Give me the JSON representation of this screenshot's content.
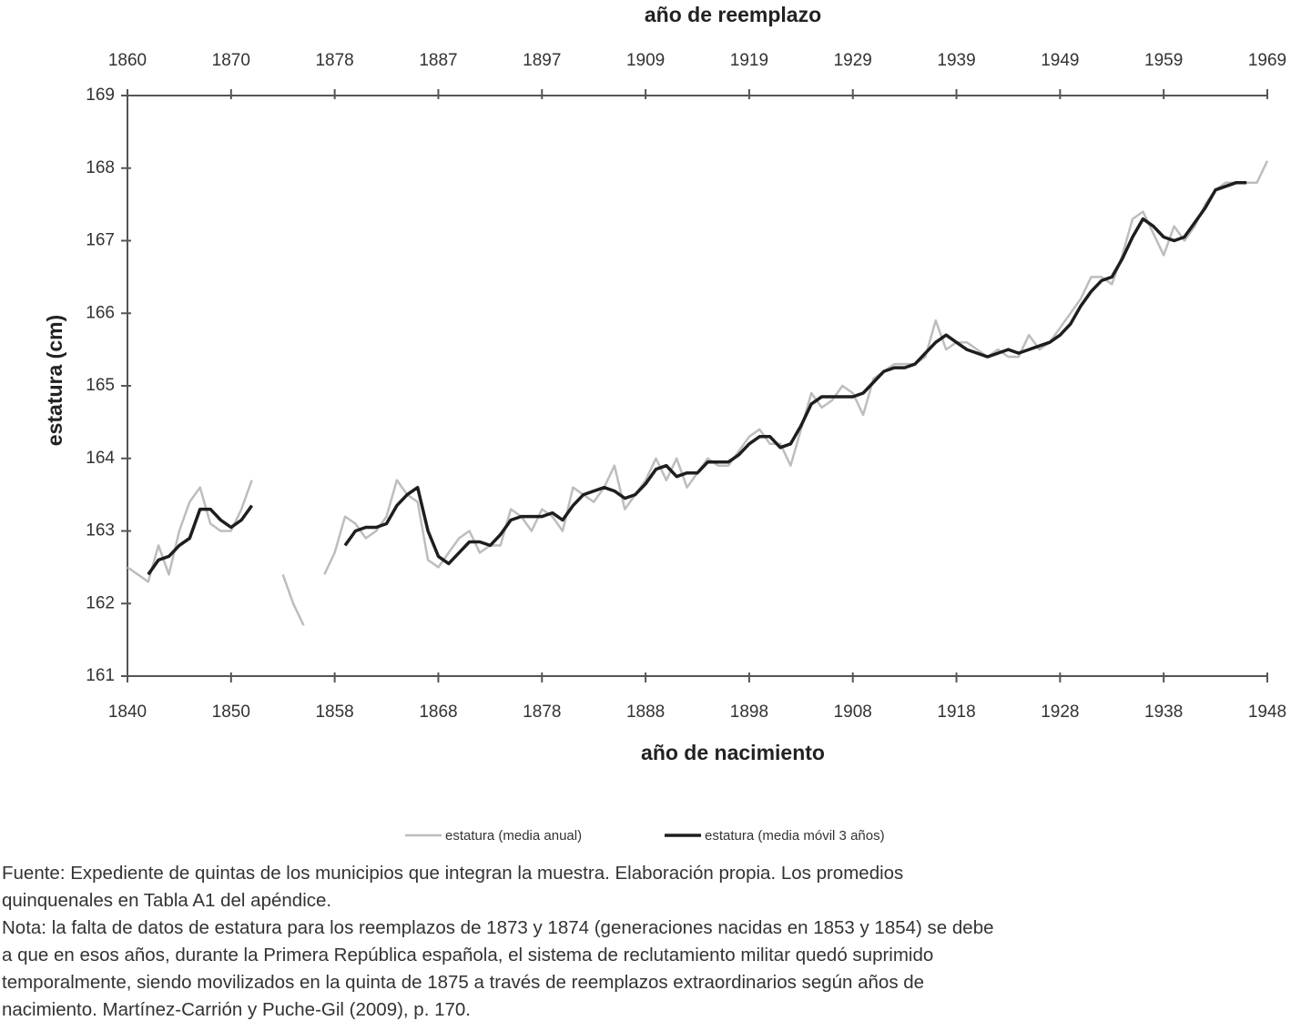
{
  "chart_data": {
    "type": "line",
    "title": "año de reemplazo",
    "x_label": "año de nacimiento",
    "y_label": "estatura (cm)",
    "categories": [
      "1840",
      null,
      null,
      null,
      null,
      null,
      null,
      null,
      null,
      null,
      "1850",
      null,
      null,
      null,
      null,
      null,
      null,
      null,
      null,
      null,
      "1858",
      null,
      null,
      null,
      null,
      null,
      null,
      null,
      null,
      null,
      "1868",
      null,
      null,
      null,
      null,
      null,
      null,
      null,
      null,
      null,
      "1878",
      null,
      null,
      null,
      null,
      null,
      null,
      null,
      null,
      null,
      "1888",
      null,
      null,
      null,
      null,
      null,
      null,
      null,
      null,
      null,
      "1898",
      null,
      null,
      null,
      null,
      null,
      null,
      null,
      null,
      null,
      "1908",
      null,
      null,
      null,
      null,
      null,
      null,
      null,
      null,
      null,
      "1918",
      null,
      null,
      null,
      null,
      null,
      null,
      null,
      null,
      null,
      "1928",
      null,
      null,
      null,
      null,
      null,
      null,
      null,
      null,
      null,
      "1938",
      null,
      null,
      null,
      null,
      null,
      null,
      null,
      null,
      null,
      "1948"
    ],
    "top_categories": [
      "1860",
      null,
      null,
      null,
      null,
      null,
      null,
      null,
      null,
      null,
      "1870",
      null,
      null,
      null,
      null,
      null,
      null,
      null,
      null,
      null,
      "1878",
      null,
      null,
      null,
      null,
      null,
      null,
      null,
      null,
      null,
      "1887",
      null,
      null,
      null,
      null,
      null,
      null,
      null,
      null,
      null,
      "1897",
      null,
      null,
      null,
      null,
      null,
      null,
      null,
      null,
      null,
      "1909",
      null,
      null,
      null,
      null,
      null,
      null,
      null,
      null,
      null,
      "1919",
      null,
      null,
      null,
      null,
      null,
      null,
      null,
      null,
      null,
      "1929",
      null,
      null,
      null,
      null,
      null,
      null,
      null,
      null,
      null,
      "1939",
      null,
      null,
      null,
      null,
      null,
      null,
      null,
      null,
      null,
      "1949",
      null,
      null,
      null,
      null,
      null,
      null,
      null,
      null,
      null,
      "1959",
      null,
      null,
      null,
      null,
      null,
      null,
      null,
      null,
      null,
      "1969"
    ],
    "series": [
      {
        "name": "estatura (media anual)",
        "color": "#bdbdbd",
        "values": [
          162.5,
          162.4,
          162.3,
          162.8,
          162.4,
          163.0,
          163.4,
          163.6,
          163.1,
          163.0,
          163.0,
          163.3,
          163.7,
          null,
          null,
          162.4,
          162.0,
          161.7,
          null,
          162.4,
          162.7,
          163.2,
          163.1,
          162.9,
          163.0,
          163.2,
          163.7,
          163.5,
          163.4,
          162.6,
          162.5,
          162.7,
          162.9,
          163.0,
          162.7,
          162.8,
          162.8,
          163.3,
          163.2,
          163.0,
          163.3,
          163.2,
          163.0,
          163.6,
          163.5,
          163.4,
          163.6,
          163.9,
          163.3,
          163.5,
          163.7,
          164.0,
          163.7,
          164.0,
          163.6,
          163.8,
          164.0,
          163.9,
          163.9,
          164.1,
          164.3,
          164.4,
          164.2,
          164.2,
          163.9,
          164.4,
          164.9,
          164.7,
          164.8,
          165.0,
          164.9,
          164.6,
          165.1,
          165.2,
          165.3,
          165.3,
          165.3,
          165.4,
          165.9,
          165.5,
          165.6,
          165.6,
          165.5,
          165.4,
          165.5,
          165.4,
          165.4,
          165.7,
          165.5,
          165.6,
          165.8,
          166.0,
          166.2,
          166.5,
          166.5,
          166.4,
          166.8,
          167.3,
          167.4,
          167.1,
          166.8,
          167.2,
          167.0,
          167.2,
          167.5,
          167.7,
          167.8,
          167.8,
          167.8,
          167.8,
          168.1
        ]
      },
      {
        "name": "estatura (media móvil 3 años)",
        "color": "#1e1e1e",
        "values": [
          null,
          null,
          162.4,
          162.6,
          162.65,
          162.8,
          162.9,
          163.3,
          163.3,
          163.15,
          163.05,
          163.15,
          163.35,
          null,
          null,
          null,
          null,
          null,
          null,
          null,
          null,
          162.8,
          163.0,
          163.05,
          163.05,
          163.1,
          163.35,
          163.5,
          163.6,
          163.0,
          162.65,
          162.55,
          162.7,
          162.85,
          162.85,
          162.8,
          162.95,
          163.15,
          163.2,
          163.2,
          163.2,
          163.25,
          163.15,
          163.35,
          163.5,
          163.55,
          163.6,
          163.55,
          163.45,
          163.5,
          163.65,
          163.85,
          163.9,
          163.75,
          163.8,
          163.8,
          163.95,
          163.95,
          163.95,
          164.05,
          164.2,
          164.3,
          164.3,
          164.15,
          164.2,
          164.45,
          164.75,
          164.85,
          164.85,
          164.85,
          164.85,
          164.9,
          165.05,
          165.2,
          165.25,
          165.25,
          165.3,
          165.45,
          165.6,
          165.7,
          165.6,
          165.5,
          165.45,
          165.4,
          165.45,
          165.5,
          165.45,
          165.5,
          165.55,
          165.6,
          165.7,
          165.85,
          166.1,
          166.3,
          166.45,
          166.5,
          166.75,
          167.05,
          167.3,
          167.2,
          167.05,
          167.0,
          167.05,
          167.25,
          167.45,
          167.7,
          167.75,
          167.8,
          167.8,
          null,
          null
        ]
      }
    ],
    "ylim": [
      161,
      169
    ],
    "yticks": [
      161,
      162,
      163,
      164,
      165,
      166,
      167,
      168,
      169
    ],
    "notes": [
      "Fuente: Expediente de quintas de los municipios que integran la muestra. Elaboración propia. Los promedios",
      "quinquenales en Tabla A1 del apéndice.",
      "Nota: la falta de datos de estatura para los reemplazos de 1873 y 1874 (generaciones nacidas en 1853 y 1854) se debe",
      "a que en esos años, durante la Primera República española, el sistema de reclutamiento militar quedó suprimido",
      "temporalmente, siendo movilizados en la quinta de 1875 a través de reemplazos extraordinarios según años de",
      "nacimiento. Martínez-Carrión y Puche-Gil (2009), p. 170."
    ]
  }
}
